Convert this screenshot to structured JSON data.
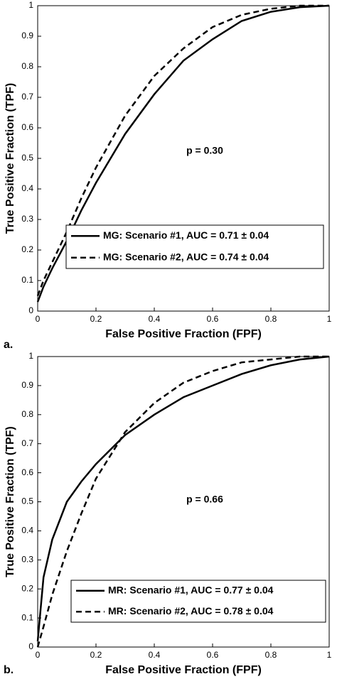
{
  "chart_data": [
    {
      "type": "line",
      "panel_label": "a.",
      "annotation": "p = 0.30",
      "xlabel": "False Positive Fraction (FPF)",
      "ylabel": "True Positive Fraction (TPF)",
      "x": [
        0,
        0.02,
        0.05,
        0.1,
        0.15,
        0.2,
        0.3,
        0.4,
        0.5,
        0.6,
        0.7,
        0.8,
        0.9,
        1
      ],
      "series": [
        {
          "name": "MG: Scenario #1, AUC = 0.71 ± 0.04",
          "color": "#000000",
          "dash": "solid",
          "values": [
            0.03,
            0.08,
            0.14,
            0.23,
            0.33,
            0.42,
            0.58,
            0.71,
            0.82,
            0.89,
            0.95,
            0.98,
            0.995,
            1
          ]
        },
        {
          "name": "MG: Scenario #2, AUC = 0.74 ± 0.04",
          "color": "#000000",
          "dash": "dashed",
          "values": [
            0.05,
            0.1,
            0.16,
            0.26,
            0.37,
            0.47,
            0.64,
            0.77,
            0.86,
            0.93,
            0.97,
            0.99,
            1,
            1
          ]
        }
      ],
      "xlim": [
        0,
        1
      ],
      "ylim": [
        0,
        1
      ],
      "xticks": [
        0,
        0.2,
        0.4,
        0.6,
        0.8,
        1
      ],
      "yticks": [
        0,
        0.1,
        0.2,
        0.3,
        0.4,
        0.5,
        0.6,
        0.7,
        0.8,
        0.9,
        1
      ],
      "grid": false,
      "legend": "lower right"
    },
    {
      "type": "line",
      "panel_label": "b.",
      "annotation": "p = 0.66",
      "xlabel": "False Positive Fraction (FPF)",
      "ylabel": "True Positive Fraction (TPF)",
      "x": [
        0,
        0.02,
        0.05,
        0.1,
        0.15,
        0.2,
        0.3,
        0.4,
        0.5,
        0.6,
        0.7,
        0.8,
        0.9,
        1
      ],
      "series": [
        {
          "name": "MR: Scenario #1, AUC = 0.77 ± 0.04",
          "color": "#000000",
          "dash": "solid",
          "values": [
            0.02,
            0.24,
            0.37,
            0.5,
            0.57,
            0.63,
            0.73,
            0.8,
            0.86,
            0.9,
            0.94,
            0.97,
            0.99,
            1
          ]
        },
        {
          "name": "MR: Scenario #2, AUC = 0.78 ± 0.04",
          "color": "#000000",
          "dash": "dashed",
          "values": [
            0,
            0.07,
            0.18,
            0.33,
            0.46,
            0.58,
            0.74,
            0.84,
            0.91,
            0.95,
            0.98,
            0.99,
            1,
            1
          ]
        }
      ],
      "xlim": [
        0,
        1
      ],
      "ylim": [
        0,
        1
      ],
      "xticks": [
        0,
        0.2,
        0.4,
        0.6,
        0.8,
        1
      ],
      "yticks": [
        0,
        0.1,
        0.2,
        0.3,
        0.4,
        0.5,
        0.6,
        0.7,
        0.8,
        0.9,
        1
      ],
      "grid": false,
      "legend": "lower right"
    }
  ]
}
